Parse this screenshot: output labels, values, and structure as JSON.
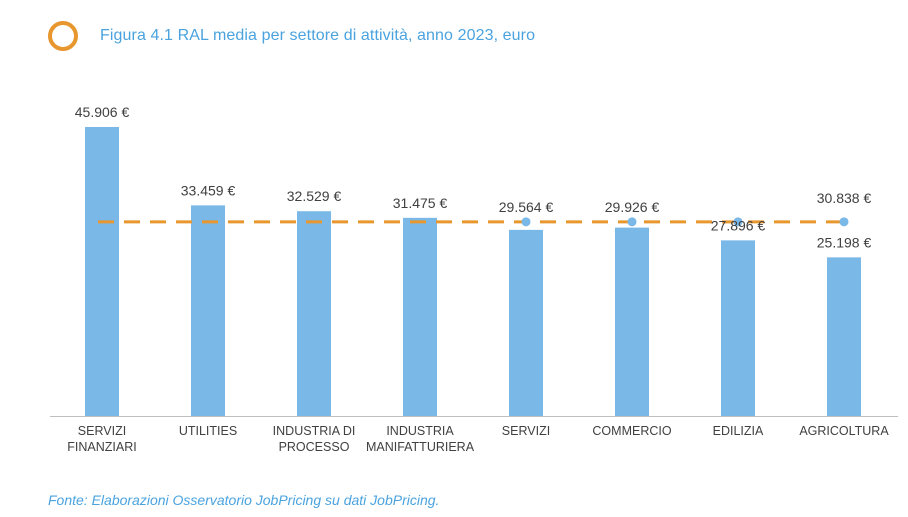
{
  "title": "Figura 4.1 RAL media per settore di attività, anno 2023, euro",
  "source": "Fonte: Elaborazioni Osservatorio JobPricing su dati JobPricing.",
  "colors": {
    "bar": "#7AB8E8",
    "average_line": "#E8962E",
    "title": "#4AA3DF",
    "ring": "#E8962E"
  },
  "chart_data": {
    "type": "bar",
    "title": "Figura 4.1 RAL media per settore di attività, anno 2023, euro",
    "xlabel": "",
    "ylabel": "",
    "ylim": [
      0,
      50000
    ],
    "grid": false,
    "categories": [
      [
        "SERVIZI",
        "FINANZIARI"
      ],
      [
        "UTILITIES"
      ],
      [
        "INDUSTRIA DI",
        "PROCESSO"
      ],
      [
        "INDUSTRIA",
        "MANIFATTURIERA"
      ],
      [
        "SERVIZI"
      ],
      [
        "COMMERCIO"
      ],
      [
        "EDILIZIA"
      ],
      [
        "AGRICOLTURA"
      ]
    ],
    "values": [
      45906,
      33459,
      32529,
      31475,
      29564,
      29926,
      27896,
      25198
    ],
    "value_labels": [
      "45.906 €",
      "33.459 €",
      "32.529 €",
      "31.475 €",
      "29.564 €",
      "29.926 €",
      "27.896 €",
      "25.198 €"
    ],
    "average": {
      "value": 30838,
      "label": "30.838 €",
      "style": "dashed"
    }
  }
}
